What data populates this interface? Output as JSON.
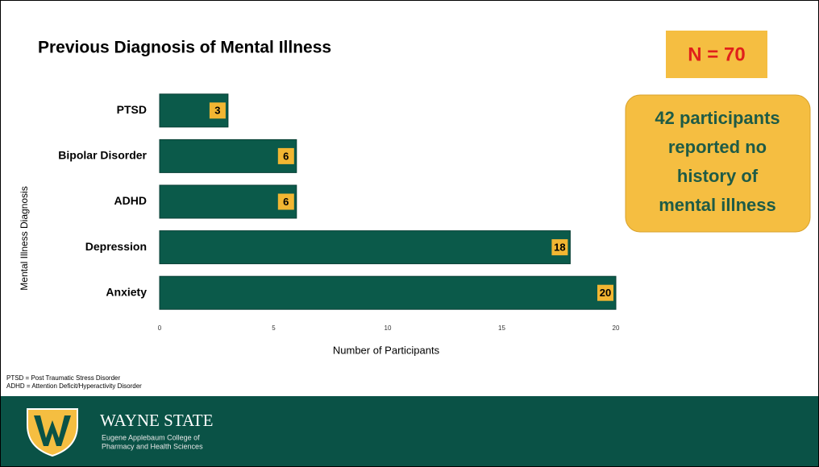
{
  "chart_data": {
    "type": "bar",
    "orientation": "horizontal",
    "title": "Previous Diagnosis of Mental Illness",
    "categories": [
      "PTSD",
      "Bipolar Disorder",
      "ADHD",
      "Depression",
      "Anxiety"
    ],
    "values": [
      3,
      6,
      6,
      18,
      20
    ],
    "color": "#0b5a4a",
    "xlim": [
      0,
      20
    ],
    "xticks": [
      0,
      5,
      10,
      15,
      20
    ],
    "xlabel": "Number of Participants",
    "ylabel": "Mental Illness Diagnosis"
  },
  "sample_size": "N = 70",
  "callout": [
    "42 participants",
    "reported no",
    "history of",
    "mental illness"
  ],
  "footnotes": [
    "PTSD = Post Traumatic Stress Disorder",
    "ADHD = Attention Deficit/Hyperactivity Disorder"
  ],
  "footer": {
    "name": "WAYNE STATE",
    "college": [
      "Eugene Applebaum College of",
      "Pharmacy and Health Sciences"
    ]
  }
}
